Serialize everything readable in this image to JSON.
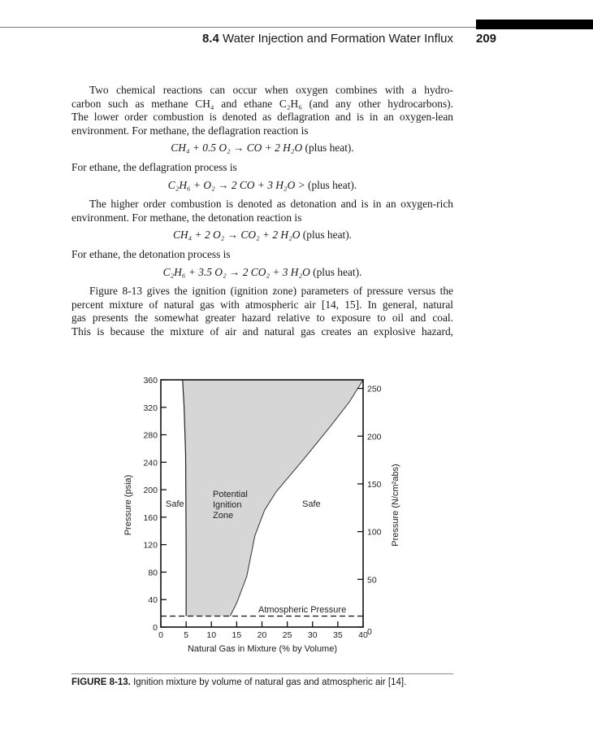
{
  "header": {
    "section_number": "8.4",
    "section_title": "Water Injection and Formation Water Influx",
    "page_number": "209"
  },
  "body": {
    "p1": [
      "Two chemical reactions can occur when oxygen combines with a hydro-",
      "carbon such as methane CH₄ and ethane C₂H₆ (and any other hydrocarbons).",
      "The lower order combustion is denoted as deflagration and is in an oxygen-lean",
      "environment. For methane, the deflagration reaction is"
    ],
    "eq1": {
      "formula": "CH₄ + 0.5 O₂ → CO + 2 H₂O",
      "note": "(plus heat)."
    },
    "p2": "For ethane, the deflagration process is",
    "eq2": {
      "formula": "C₂H₆ + O₂ → 2 CO + 3 H₂O >",
      "note": "(plus heat)."
    },
    "p3": [
      "The higher order combustion is denoted as detonation and is in an oxygen-rich",
      "environment. For methane, the detonation reaction is"
    ],
    "eq3": {
      "formula": "CH₄ + 2 O₂ → CO₂ + 2 H₂O",
      "note": "(plus heat)."
    },
    "p4": "For ethane, the detonation process is",
    "eq4": {
      "formula": "C₂H₆ + 3.5 O₂ → 2 CO₂ + 3 H₂O",
      "note": "(plus heat)."
    },
    "p5": [
      "Figure 8-13 gives the ignition (ignition zone) parameters of pressure versus the",
      "percent mixture of natural gas with atmospheric air [14, 15]. In general, natural",
      "gas presents the somewhat greater hazard relative to exposure to oil and coal.",
      "This is because the mixture of air and natural gas creates an explosive hazard,"
    ]
  },
  "chart_data": {
    "type": "area",
    "xlabel": "Natural Gas in Mixture (% by Volume)",
    "ylabel": "Pressure (psia)",
    "ylabel_right": "Pressure (N/cm²abs)",
    "xlim": [
      0,
      40
    ],
    "ylim": [
      0,
      360
    ],
    "ylim_right": [
      0,
      259
    ],
    "x_ticks": [
      0,
      5,
      10,
      15,
      20,
      25,
      30,
      35,
      40
    ],
    "y_ticks": [
      0,
      40,
      80,
      120,
      160,
      200,
      240,
      280,
      320,
      360
    ],
    "y_ticks_right": [
      0,
      50,
      100,
      150,
      200,
      250
    ],
    "grid": false,
    "fill_color": "#d6d6d6",
    "lower_limit": {
      "x": [
        5.0,
        5.0,
        4.9,
        4.6,
        4.3
      ],
      "y": [
        16,
        120,
        252,
        320,
        360
      ]
    },
    "upper_limit": {
      "x": [
        13.7,
        15.0,
        17.0,
        18.6,
        20.5,
        22.8,
        28.2,
        33.5,
        37.3,
        40.0
      ],
      "y": [
        16,
        35,
        74,
        133,
        170,
        197,
        244,
        292,
        328,
        360
      ]
    },
    "atmospheric_pressure": 16,
    "annotations": {
      "safe_left": "Safe",
      "zone": [
        "Potential",
        "Ignition",
        "Zone"
      ],
      "safe_right": "Safe",
      "atm": "Atmospheric Pressure"
    }
  },
  "caption": {
    "label": "FIGURE 8-13.",
    "text": "Ignition mixture by volume of natural gas and atmospheric air [14]."
  }
}
